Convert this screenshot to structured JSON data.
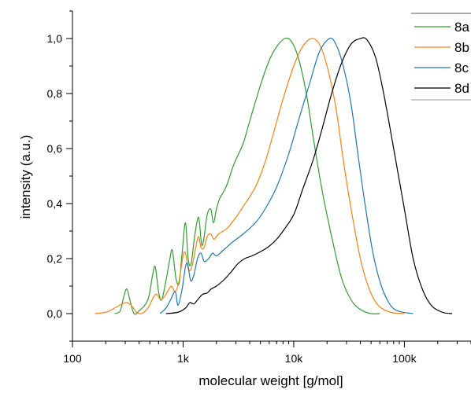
{
  "chart_data": {
    "type": "line",
    "title": "",
    "xlabel": "molecular weight [g/mol]",
    "ylabel": "intensity (a.u.)",
    "xscale": "log",
    "xlim": [
      100,
      400000
    ],
    "ylim": [
      -0.1,
      1.1
    ],
    "x_ticks": [
      {
        "value": 100,
        "label": "100"
      },
      {
        "value": 1000,
        "label": "1k"
      },
      {
        "value": 10000,
        "label": "10k"
      },
      {
        "value": 100000,
        "label": "100k"
      }
    ],
    "y_ticks": [
      {
        "value": 0.0,
        "label": "0,0"
      },
      {
        "value": 0.2,
        "label": "0,2"
      },
      {
        "value": 0.4,
        "label": "0,4"
      },
      {
        "value": 0.6,
        "label": "0,6"
      },
      {
        "value": 0.8,
        "label": "0,8"
      },
      {
        "value": 1.0,
        "label": "1,0"
      }
    ],
    "grid": false,
    "legend_position": "top-right",
    "series": [
      {
        "name": "8a",
        "color": "#2ca02c",
        "points": [
          [
            240,
            0.0
          ],
          [
            270,
            0.01
          ],
          [
            290,
            0.06
          ],
          [
            310,
            0.09
          ],
          [
            330,
            0.05
          ],
          [
            360,
            0.0
          ],
          [
            400,
            0.01
          ],
          [
            480,
            0.05
          ],
          [
            530,
            0.14
          ],
          [
            560,
            0.17
          ],
          [
            600,
            0.08
          ],
          [
            640,
            0.05
          ],
          [
            700,
            0.12
          ],
          [
            760,
            0.2
          ],
          [
            800,
            0.23
          ],
          [
            860,
            0.13
          ],
          [
            920,
            0.11
          ],
          [
            980,
            0.22
          ],
          [
            1050,
            0.33
          ],
          [
            1110,
            0.2
          ],
          [
            1180,
            0.18
          ],
          [
            1270,
            0.28
          ],
          [
            1380,
            0.35
          ],
          [
            1470,
            0.25
          ],
          [
            1550,
            0.28
          ],
          [
            1650,
            0.36
          ],
          [
            1780,
            0.38
          ],
          [
            1880,
            0.33
          ],
          [
            2000,
            0.38
          ],
          [
            2150,
            0.42
          ],
          [
            2300,
            0.44
          ],
          [
            2500,
            0.47
          ],
          [
            2800,
            0.53
          ],
          [
            3000,
            0.56
          ],
          [
            3500,
            0.62
          ],
          [
            4000,
            0.7
          ],
          [
            5000,
            0.83
          ],
          [
            6000,
            0.92
          ],
          [
            7000,
            0.97
          ],
          [
            8300,
            1.0
          ],
          [
            9500,
            0.99
          ],
          [
            11000,
            0.93
          ],
          [
            13000,
            0.8
          ],
          [
            15000,
            0.64
          ],
          [
            18000,
            0.45
          ],
          [
            22000,
            0.28
          ],
          [
            27000,
            0.13
          ],
          [
            33000,
            0.05
          ],
          [
            40000,
            0.015
          ],
          [
            50000,
            0.0
          ],
          [
            60000,
            0.0
          ]
        ]
      },
      {
        "name": "8b",
        "color": "#ff7f0e",
        "points": [
          [
            160,
            0.0
          ],
          [
            200,
            0.005
          ],
          [
            240,
            0.02
          ],
          [
            280,
            0.035
          ],
          [
            310,
            0.04
          ],
          [
            340,
            0.03
          ],
          [
            380,
            0.005
          ],
          [
            420,
            0.0
          ],
          [
            480,
            0.02
          ],
          [
            540,
            0.06
          ],
          [
            580,
            0.07
          ],
          [
            630,
            0.05
          ],
          [
            700,
            0.07
          ],
          [
            780,
            0.1
          ],
          [
            850,
            0.08
          ],
          [
            920,
            0.12
          ],
          [
            1000,
            0.21
          ],
          [
            1050,
            0.22
          ],
          [
            1120,
            0.16
          ],
          [
            1200,
            0.17
          ],
          [
            1300,
            0.24
          ],
          [
            1380,
            0.28
          ],
          [
            1450,
            0.24
          ],
          [
            1550,
            0.24
          ],
          [
            1650,
            0.28
          ],
          [
            1780,
            0.29
          ],
          [
            1900,
            0.27
          ],
          [
            2100,
            0.29
          ],
          [
            2500,
            0.31
          ],
          [
            3000,
            0.35
          ],
          [
            3500,
            0.39
          ],
          [
            4500,
            0.46
          ],
          [
            5500,
            0.55
          ],
          [
            6500,
            0.65
          ],
          [
            8000,
            0.78
          ],
          [
            10000,
            0.9
          ],
          [
            12000,
            0.97
          ],
          [
            14500,
            1.0
          ],
          [
            17000,
            0.98
          ],
          [
            20000,
            0.9
          ],
          [
            24000,
            0.75
          ],
          [
            28000,
            0.56
          ],
          [
            33000,
            0.38
          ],
          [
            40000,
            0.2
          ],
          [
            48000,
            0.09
          ],
          [
            58000,
            0.03
          ],
          [
            75000,
            0.005
          ],
          [
            100000,
            0.0
          ]
        ]
      },
      {
        "name": "8c",
        "color": "#1f77b4",
        "points": [
          [
            620,
            0.0
          ],
          [
            700,
            0.02
          ],
          [
            770,
            0.05
          ],
          [
            850,
            0.08
          ],
          [
            900,
            0.03
          ],
          [
            980,
            0.09
          ],
          [
            1050,
            0.17
          ],
          [
            1100,
            0.18
          ],
          [
            1170,
            0.12
          ],
          [
            1250,
            0.14
          ],
          [
            1350,
            0.2
          ],
          [
            1450,
            0.22
          ],
          [
            1550,
            0.19
          ],
          [
            1700,
            0.2
          ],
          [
            1850,
            0.22
          ],
          [
            2000,
            0.21
          ],
          [
            2300,
            0.23
          ],
          [
            2800,
            0.26
          ],
          [
            3500,
            0.29
          ],
          [
            4500,
            0.33
          ],
          [
            5500,
            0.38
          ],
          [
            7000,
            0.46
          ],
          [
            9000,
            0.58
          ],
          [
            11000,
            0.7
          ],
          [
            14000,
            0.84
          ],
          [
            17000,
            0.95
          ],
          [
            21000,
            1.0
          ],
          [
            24000,
            0.98
          ],
          [
            28000,
            0.9
          ],
          [
            33000,
            0.76
          ],
          [
            38000,
            0.58
          ],
          [
            44000,
            0.4
          ],
          [
            52000,
            0.22
          ],
          [
            62000,
            0.1
          ],
          [
            75000,
            0.03
          ],
          [
            90000,
            0.008
          ],
          [
            120000,
            0.0
          ]
        ]
      },
      {
        "name": "8d",
        "color": "#000000",
        "points": [
          [
            700,
            0.0
          ],
          [
            900,
            0.005
          ],
          [
            1050,
            0.02
          ],
          [
            1150,
            0.04
          ],
          [
            1250,
            0.035
          ],
          [
            1350,
            0.05
          ],
          [
            1500,
            0.07
          ],
          [
            1650,
            0.075
          ],
          [
            1800,
            0.09
          ],
          [
            2000,
            0.1
          ],
          [
            2300,
            0.12
          ],
          [
            2700,
            0.15
          ],
          [
            3100,
            0.18
          ],
          [
            3600,
            0.2
          ],
          [
            4200,
            0.21
          ],
          [
            5000,
            0.225
          ],
          [
            6000,
            0.245
          ],
          [
            7000,
            0.27
          ],
          [
            8000,
            0.3
          ],
          [
            10000,
            0.36
          ],
          [
            12000,
            0.45
          ],
          [
            15000,
            0.56
          ],
          [
            18000,
            0.67
          ],
          [
            22000,
            0.8
          ],
          [
            27000,
            0.91
          ],
          [
            33000,
            0.98
          ],
          [
            40000,
            1.0
          ],
          [
            46000,
            0.995
          ],
          [
            55000,
            0.93
          ],
          [
            65000,
            0.8
          ],
          [
            80000,
            0.6
          ],
          [
            100000,
            0.38
          ],
          [
            120000,
            0.2
          ],
          [
            145000,
            0.09
          ],
          [
            175000,
            0.03
          ],
          [
            220000,
            0.005
          ],
          [
            270000,
            0.0
          ]
        ]
      }
    ]
  }
}
